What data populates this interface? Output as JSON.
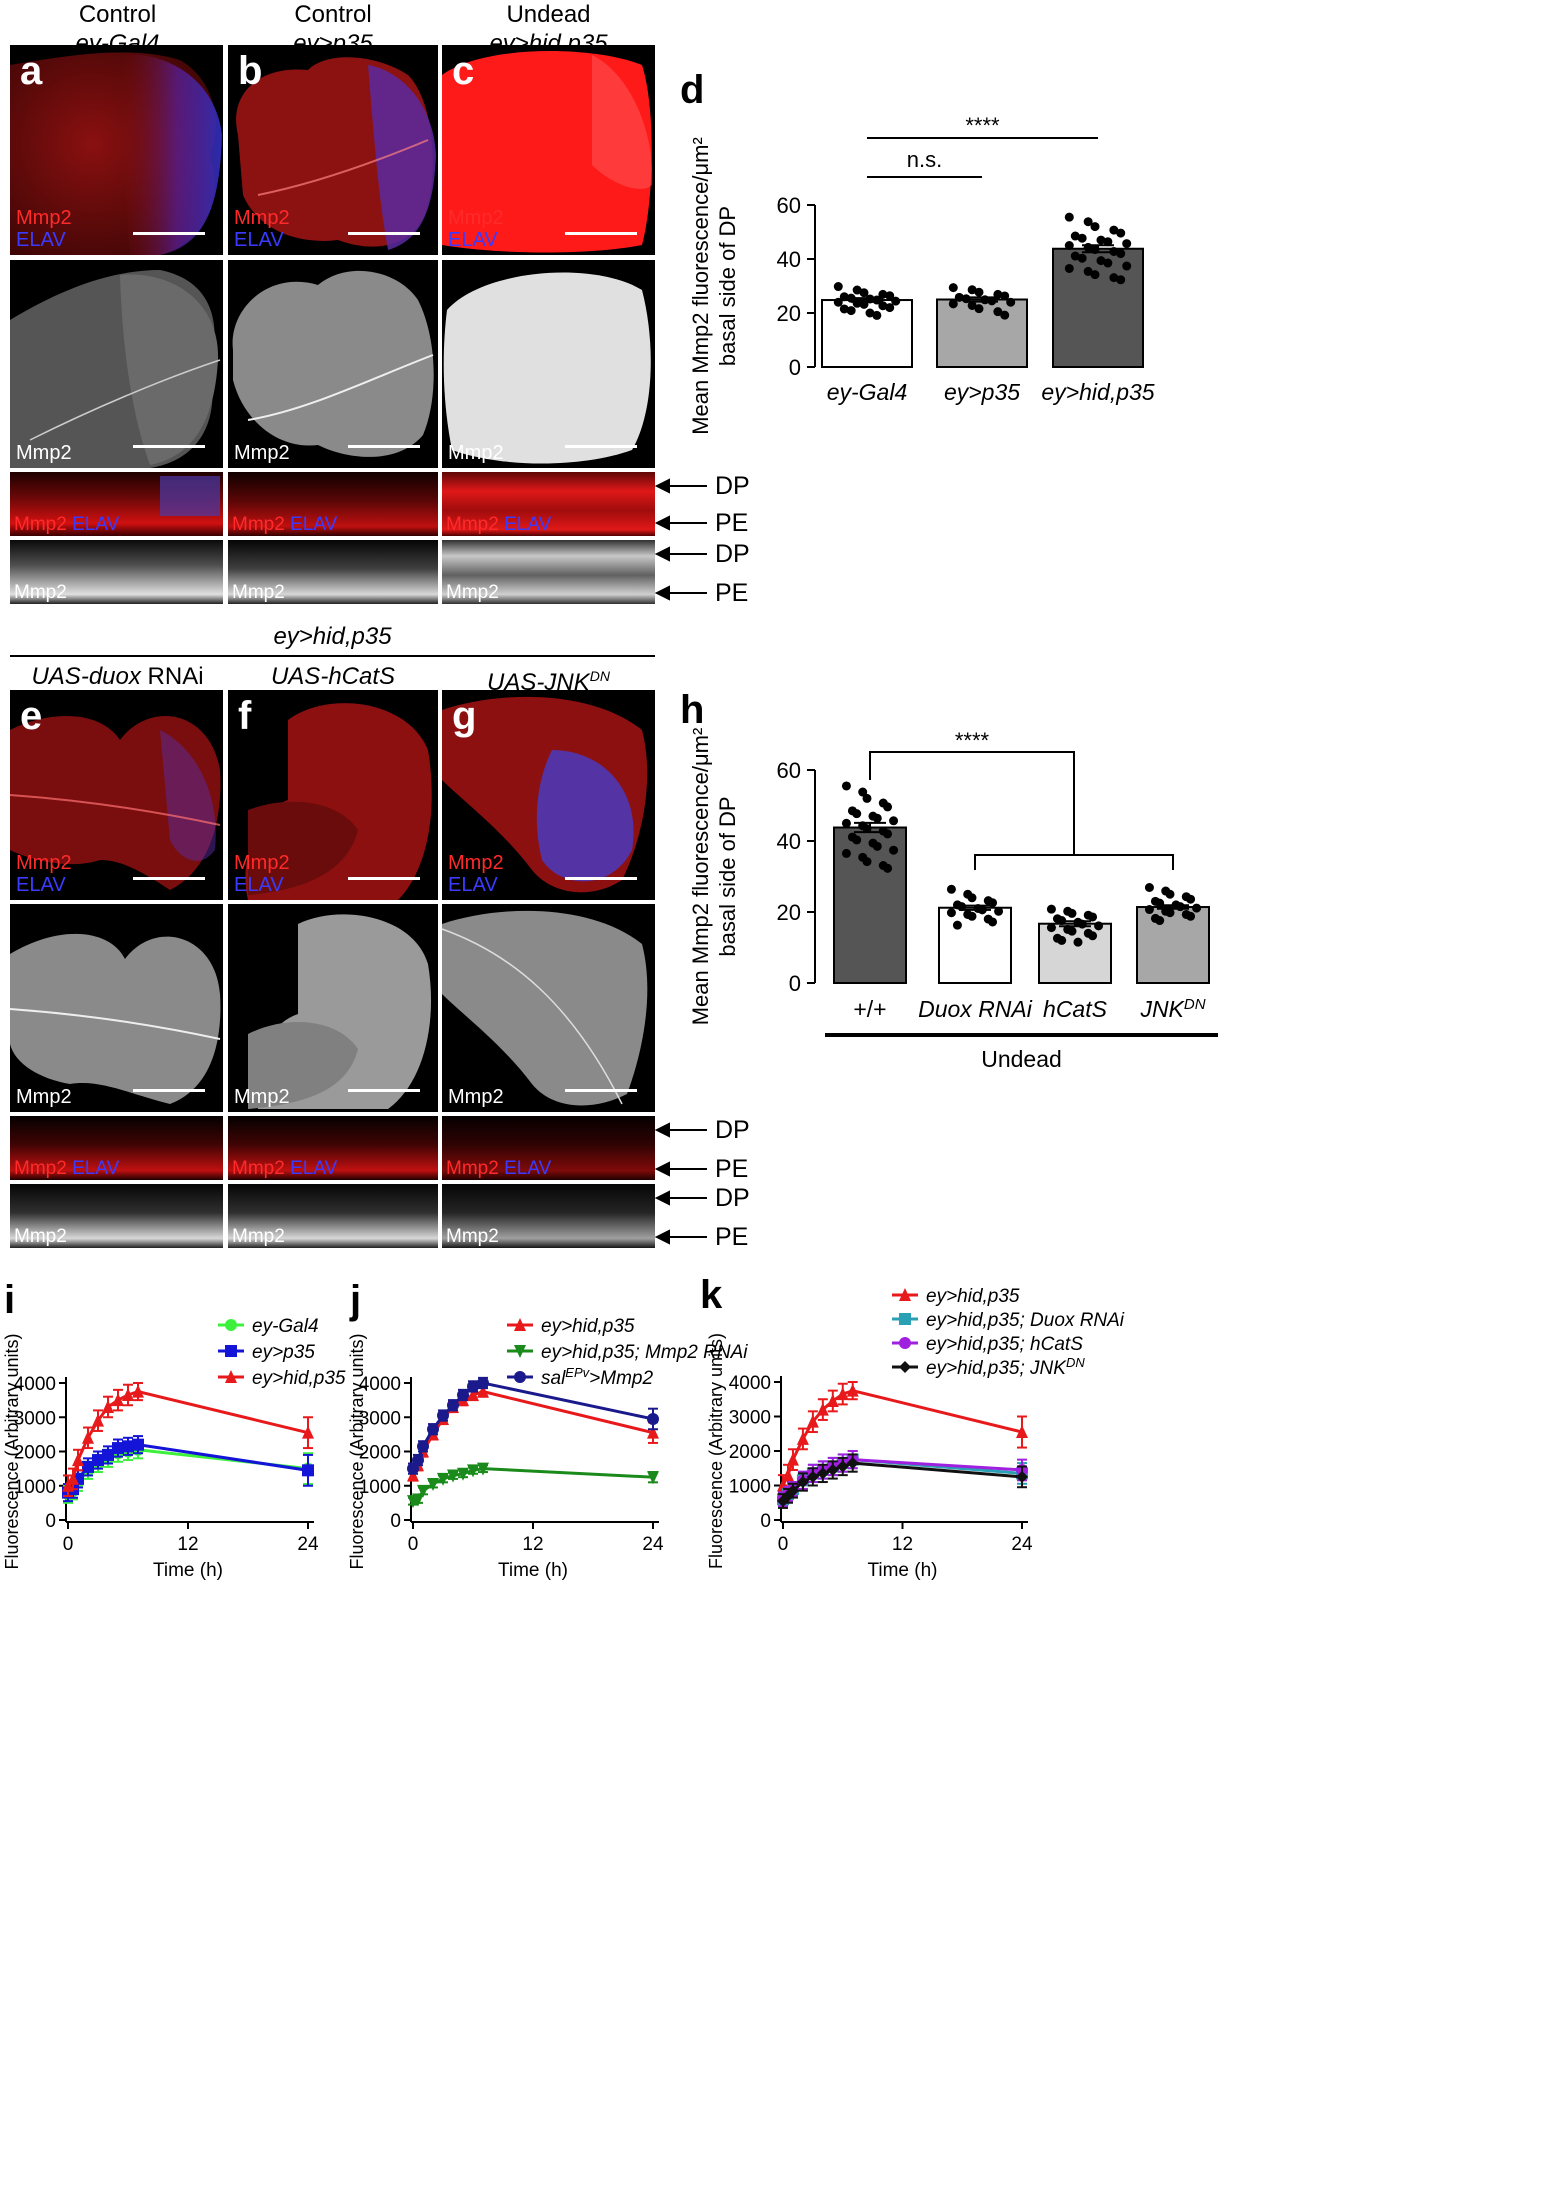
{
  "top_columns": [
    {
      "line1": "Control",
      "line2": "ey-Gal4",
      "letter": "a"
    },
    {
      "line1": "Control",
      "line2": "ey>p35",
      "letter": "b"
    },
    {
      "line1": "Undead",
      "line2": "ey>hid,p35",
      "letter": "c"
    }
  ],
  "bottom_group_title": "ey>hid,p35",
  "bottom_columns": [
    {
      "prefix": "UAS-",
      "gene": "duox",
      "suffix": " RNAi",
      "sup": "",
      "letter": "e"
    },
    {
      "prefix": "UAS-",
      "gene": "hCatS",
      "suffix": "",
      "sup": "",
      "letter": "f"
    },
    {
      "prefix": "UAS-",
      "gene": "JNK",
      "suffix": "",
      "sup": "DN",
      "letter": "g"
    }
  ],
  "channel_labels": {
    "mmp2": "Mmp2",
    "elav": "ELAV"
  },
  "side_labels": {
    "dp": "DP",
    "pe": "PE"
  },
  "colors": {
    "mmp2_red": "#ff2a2a",
    "elav_blue": "#3b3bff",
    "ctrl_green": "#3cf03c",
    "ctrl_blue": "#1414d8",
    "undead_red": "#e8191b",
    "mmp2rnai_green": "#1a8a1a",
    "sal_navy": "#1a1a8c",
    "duox_teal": "#2aa0b4",
    "hcats_purple": "#a020e0",
    "jnk_black": "#111111"
  },
  "panel_letters": {
    "d": "d",
    "h": "h",
    "i": "i",
    "j": "j",
    "k": "k"
  },
  "chart_data": [
    {
      "id": "d",
      "type": "bar",
      "ylabel_line1": "Mean Mmp2 fluorescence/μm²",
      "ylabel_line2": "basal side of DP",
      "ylim": [
        0,
        60
      ],
      "yticks": [
        "0",
        "20",
        "40",
        "60"
      ],
      "categories": [
        "ey-Gal4",
        "ey>p35",
        "ey>hid,p35"
      ],
      "values": [
        24.8,
        25.0,
        43.8
      ],
      "sem": [
        0.7,
        0.8,
        1.3
      ],
      "bar_colors": [
        "#ffffff",
        "#a7a7a7",
        "#555555"
      ],
      "points": [
        [
          29.8,
          28.5,
          27.5,
          26.9,
          26.4,
          26.0,
          25.5,
          25.2,
          24.8,
          24.4,
          24.0,
          23.6,
          23.2,
          22.7,
          22.0,
          21.5,
          20.9,
          20.0,
          19.1
        ],
        [
          29.4,
          28.6,
          27.7,
          26.9,
          26.3,
          25.8,
          25.3,
          24.9,
          24.5,
          24.0,
          23.4,
          22.8,
          21.6,
          20.5,
          19.2
        ],
        [
          55.5,
          53.8,
          52.0,
          50.7,
          49.6,
          48.5,
          47.7,
          47.0,
          46.4,
          45.7,
          45.0,
          44.3,
          43.5,
          42.8,
          42.0,
          41.1,
          40.3,
          39.4,
          38.5,
          37.4,
          36.5,
          35.4,
          34.2,
          33.1,
          32.3
        ]
      ],
      "significance": [
        {
          "label": "n.s.",
          "from": 0,
          "to": 1
        },
        {
          "label": "****",
          "from": 0,
          "to": 2
        }
      ]
    },
    {
      "id": "h",
      "type": "bar",
      "ylabel_line1": "Mean Mmp2 fluorescence/μm²",
      "ylabel_line2": "basal side of DP",
      "ylim": [
        0,
        60
      ],
      "yticks": [
        "0",
        "20",
        "40",
        "60"
      ],
      "categories": [
        "+/+",
        "Duox RNAi",
        "hCatS",
        "JNK"
      ],
      "category_sups": [
        "",
        "",
        "",
        "DN"
      ],
      "category_italic": [
        false,
        true,
        true,
        true
      ],
      "values": [
        43.8,
        21.2,
        16.7,
        21.4
      ],
      "sem": [
        1.3,
        0.6,
        0.7,
        0.5
      ],
      "bar_colors": [
        "#555555",
        "#ffffff",
        "#d6d6d6",
        "#a7a7a7"
      ],
      "points": [
        [
          55.5,
          53.8,
          52.0,
          50.7,
          49.6,
          48.5,
          47.7,
          47.0,
          46.4,
          45.7,
          45.0,
          44.3,
          43.5,
          42.8,
          42.0,
          41.1,
          40.3,
          39.4,
          38.5,
          37.4,
          36.5,
          35.4,
          34.2,
          33.1,
          32.3
        ],
        [
          26.4,
          25.0,
          24.0,
          23.2,
          22.6,
          22.0,
          21.5,
          21.0,
          20.6,
          20.2,
          19.8,
          19.3,
          18.8,
          18.0,
          17.2,
          16.3
        ],
        [
          20.8,
          20.2,
          19.6,
          19.1,
          18.6,
          18.1,
          17.6,
          17.1,
          16.6,
          16.1,
          15.6,
          15.1,
          14.6,
          14.0,
          13.3,
          12.6,
          12.0,
          11.5
        ],
        [
          26.9,
          25.9,
          25.0,
          24.3,
          23.6,
          23.0,
          22.5,
          22.0,
          21.5,
          21.1,
          20.7,
          20.2,
          19.8,
          19.3,
          18.8,
          18.2,
          17.6
        ]
      ],
      "significance_label": "****",
      "group_label": "Undead"
    },
    {
      "id": "i",
      "type": "line",
      "ylabel": "Fluorescence (Arbitrary units)",
      "xlabel": "Time (h)",
      "xlim": [
        0,
        24
      ],
      "ylim": [
        0,
        4000
      ],
      "xticks": [
        0,
        12,
        24
      ],
      "yticks": [
        0,
        1000,
        2000,
        3000,
        4000
      ],
      "x": [
        0,
        0.5,
        1,
        2,
        3,
        4,
        5,
        6,
        7,
        24
      ],
      "series": [
        {
          "name": "ey-Gal4",
          "color": "#3cf03c",
          "marker": "circle",
          "y": [
            750,
            850,
            1100,
            1450,
            1650,
            1800,
            1950,
            2000,
            2050,
            1500
          ],
          "err": [
            250,
            250,
            250,
            250,
            250,
            250,
            250,
            250,
            250,
            450
          ]
        },
        {
          "name": "ey>p35",
          "color": "#1414d8",
          "marker": "square",
          "y": [
            800,
            900,
            1200,
            1550,
            1750,
            1900,
            2100,
            2150,
            2200,
            1450
          ],
          "err": [
            250,
            250,
            250,
            250,
            250,
            250,
            250,
            250,
            250,
            450
          ]
        },
        {
          "name": "ey>hid,p35",
          "color": "#e8191b",
          "marker": "triangle",
          "y": [
            1000,
            1200,
            1750,
            2400,
            2900,
            3300,
            3500,
            3650,
            3750,
            2550
          ],
          "err": [
            300,
            300,
            300,
            300,
            300,
            300,
            300,
            300,
            250,
            450
          ]
        }
      ]
    },
    {
      "id": "j",
      "type": "line",
      "ylabel": "Fluorescence (Arbitrary units)",
      "xlabel": "Time (h)",
      "xlim": [
        0,
        24
      ],
      "ylim": [
        0,
        4000
      ],
      "xticks": [
        0,
        12,
        24
      ],
      "yticks": [
        0,
        1000,
        2000,
        3000,
        4000
      ],
      "x": [
        0,
        0.5,
        1,
        2,
        3,
        4,
        5,
        6,
        7,
        24
      ],
      "series": [
        {
          "name": "ey>hid,p35",
          "color": "#e8191b",
          "marker": "triangle",
          "y": [
            1300,
            1600,
            2000,
            2500,
            2950,
            3300,
            3500,
            3650,
            3750,
            2550
          ],
          "err": [
            150,
            150,
            150,
            150,
            150,
            150,
            150,
            150,
            150,
            300
          ]
        },
        {
          "name": "ey>hid,p35; Mmp2 RNAi",
          "color": "#1a8a1a",
          "marker": "triangle-down",
          "y": [
            550,
            600,
            850,
            1050,
            1200,
            1300,
            1350,
            1450,
            1500,
            1250
          ],
          "err": [
            100,
            100,
            100,
            100,
            100,
            100,
            100,
            100,
            100,
            150
          ]
        },
        {
          "name": "sal^EPv>Mmp2",
          "color": "#1a1a8c",
          "marker": "circle",
          "y": [
            1500,
            1750,
            2150,
            2650,
            3050,
            3350,
            3650,
            3900,
            4000,
            2950
          ],
          "err": [
            150,
            150,
            150,
            150,
            150,
            150,
            150,
            150,
            150,
            300
          ]
        }
      ]
    },
    {
      "id": "k",
      "type": "line",
      "ylabel": "Fluorescence (Arbitrary units)",
      "xlabel": "Time (h)",
      "xlim": [
        0,
        24
      ],
      "ylim": [
        0,
        4000
      ],
      "xticks": [
        0,
        12,
        24
      ],
      "yticks": [
        0,
        1000,
        2000,
        3000,
        4000
      ],
      "x": [
        0,
        0.5,
        1,
        2,
        3,
        4,
        5,
        6,
        7,
        24
      ],
      "series": [
        {
          "name": "ey>hid,p35",
          "color": "#e8191b",
          "marker": "triangle",
          "y": [
            1000,
            1300,
            1750,
            2350,
            2850,
            3200,
            3450,
            3650,
            3750,
            2550
          ],
          "err": [
            300,
            300,
            300,
            300,
            300,
            300,
            300,
            300,
            250,
            450
          ]
        },
        {
          "name": "ey>hid,p35; Duox RNAi",
          "color": "#2aa0b4",
          "marker": "square",
          "y": [
            600,
            750,
            900,
            1150,
            1350,
            1450,
            1550,
            1650,
            1750,
            1350
          ],
          "err": [
            200,
            200,
            200,
            250,
            250,
            250,
            250,
            250,
            250,
            300
          ]
        },
        {
          "name": "ey>hid,p35; hCatS",
          "color": "#a020e0",
          "marker": "circle",
          "y": [
            600,
            750,
            900,
            1150,
            1350,
            1450,
            1550,
            1650,
            1750,
            1450
          ],
          "err": [
            200,
            200,
            200,
            250,
            250,
            250,
            250,
            250,
            250,
            300
          ]
        },
        {
          "name": "ey>hid,p35; JNK^DN",
          "color": "#111111",
          "marker": "diamond",
          "y": [
            550,
            700,
            850,
            1100,
            1250,
            1350,
            1450,
            1550,
            1650,
            1250
          ],
          "err": [
            200,
            200,
            200,
            250,
            250,
            250,
            250,
            250,
            250,
            300
          ]
        }
      ]
    }
  ]
}
